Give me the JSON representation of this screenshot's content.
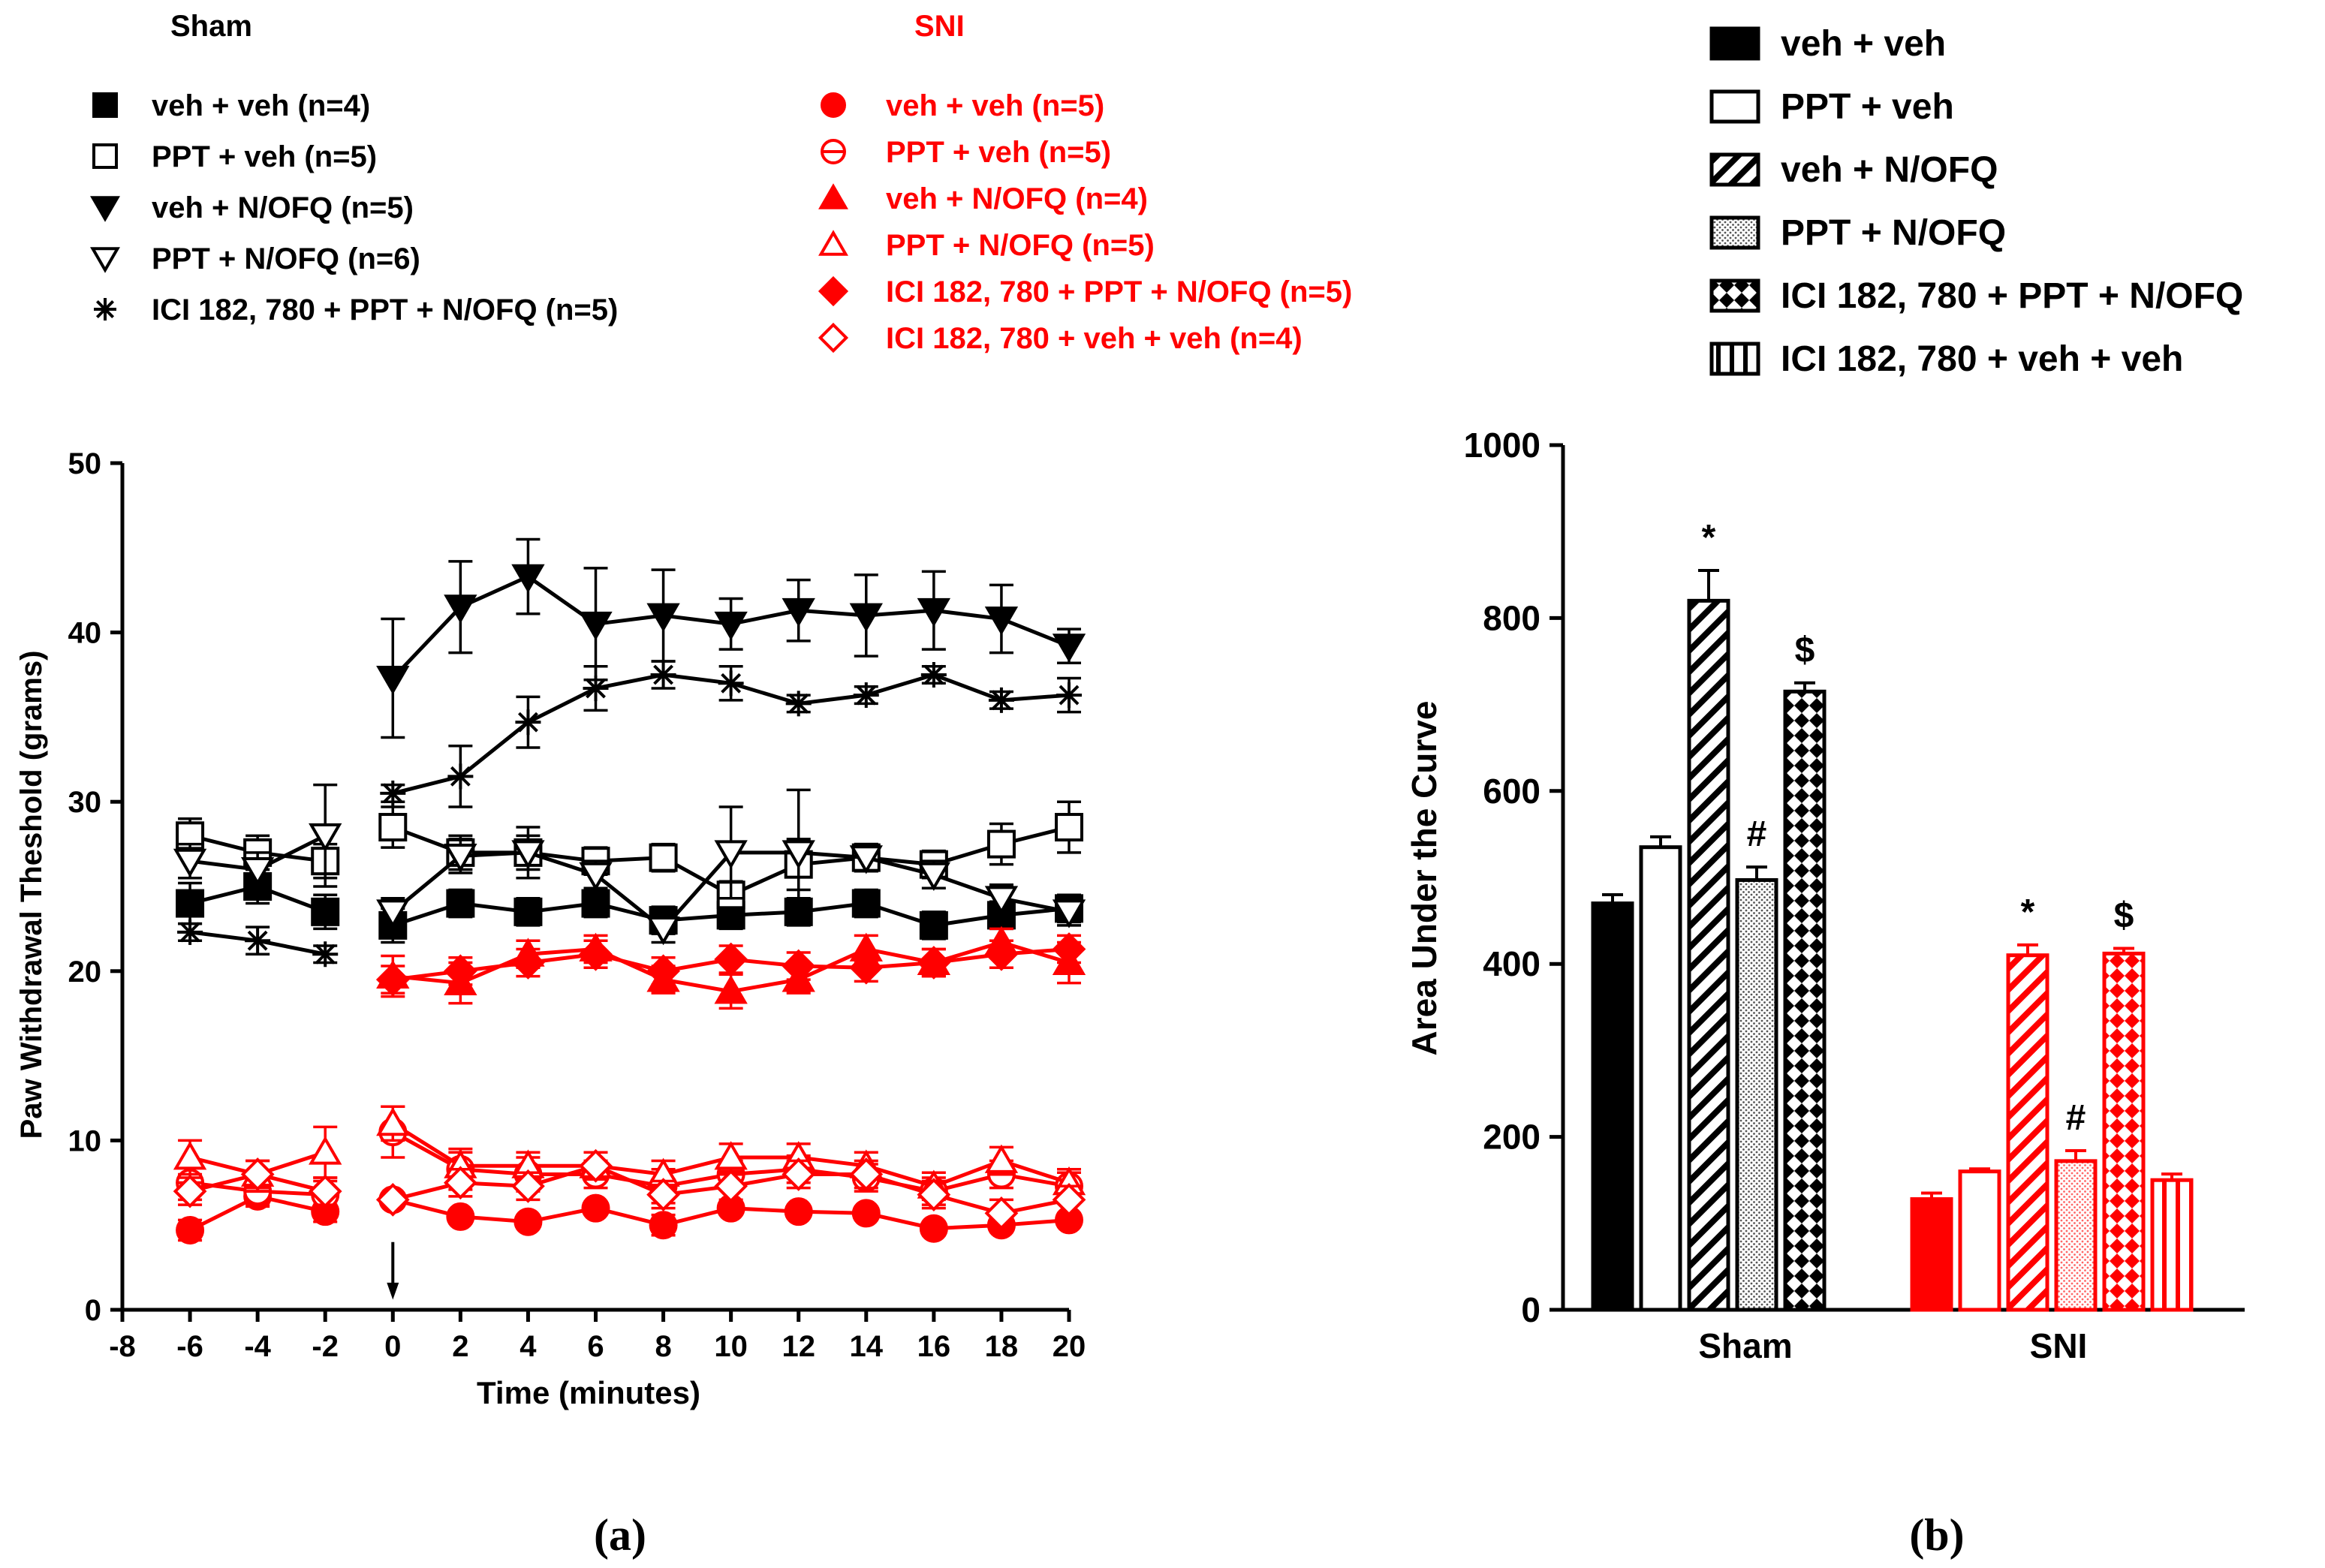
{
  "colors": {
    "sham": "#000000",
    "sni": "#ff0000"
  },
  "panel_labels": {
    "a": "(a)",
    "b": "(b)"
  },
  "chart_data": [
    {
      "type": "line",
      "panel": "(a)",
      "xlabel": "Time (minutes)",
      "ylabel": "Paw Withdrawal Theshold (grams)",
      "xlim": [
        -8,
        20
      ],
      "ylim": [
        0,
        50
      ],
      "xticks": [
        -8,
        -6,
        -4,
        -2,
        0,
        2,
        4,
        6,
        8,
        10,
        12,
        14,
        16,
        18,
        20
      ],
      "yticks": [
        0,
        10,
        20,
        30,
        40,
        50
      ],
      "injection_marker_x": 0,
      "legend_groups": [
        {
          "title": "Sham",
          "color": "#000000"
        },
        {
          "title": "SNI",
          "color": "#ff0000"
        }
      ],
      "series": [
        {
          "name": "veh + veh (n=4)",
          "group": "Sham",
          "marker": "square-filled",
          "x": [
            -6,
            -4,
            -2,
            0,
            2,
            4,
            6,
            8,
            10,
            12,
            14,
            16,
            18,
            20
          ],
          "y": [
            24,
            25,
            23.5,
            22.7,
            24,
            23.5,
            24,
            23,
            23.3,
            23.5,
            24,
            22.7,
            23.3,
            23.7
          ],
          "err": [
            1.2,
            1.0,
            1.0,
            1.0,
            0.8,
            0.8,
            0.8,
            0.8,
            0.8,
            0.8,
            0.8,
            0.8,
            0.8,
            0.8
          ]
        },
        {
          "name": "PPT + veh (n=5)",
          "group": "Sham",
          "marker": "square-open",
          "x": [
            -6,
            -4,
            -2,
            0,
            2,
            4,
            6,
            8,
            10,
            12,
            14,
            16,
            18,
            20
          ],
          "y": [
            28,
            27,
            26.5,
            28.5,
            27,
            27,
            26.5,
            26.7,
            24.5,
            26.3,
            26.7,
            26.3,
            27.5,
            28.5
          ],
          "err": [
            1.0,
            1.0,
            1.0,
            1.2,
            1.0,
            1.5,
            0.8,
            0.8,
            0.8,
            1.5,
            0.8,
            0.8,
            1.2,
            1.5
          ]
        },
        {
          "name": "veh + N/OFQ (n=5)",
          "group": "Sham",
          "marker": "triangle-down-filled",
          "x": [
            0,
            2,
            4,
            6,
            8,
            10,
            12,
            14,
            16,
            18,
            20
          ],
          "y": [
            37.3,
            41.5,
            43.3,
            40.5,
            41,
            40.5,
            41.3,
            41,
            41.3,
            40.8,
            39.2
          ],
          "err": [
            3.5,
            2.7,
            2.2,
            3.3,
            2.7,
            1.5,
            1.8,
            2.4,
            2.3,
            2.0,
            1.0
          ]
        },
        {
          "name": "PPT + N/OFQ (n=6)",
          "group": "Sham",
          "marker": "triangle-down-open",
          "x": [
            -6,
            -4,
            -2,
            0,
            2,
            4,
            6,
            8,
            10,
            12,
            14,
            16,
            18,
            20
          ],
          "y": [
            26.5,
            26,
            28,
            23.5,
            26.8,
            27,
            25.7,
            22.5,
            27,
            27,
            26.7,
            25.7,
            24.3,
            23.5
          ],
          "err": [
            1.0,
            1.0,
            3.0,
            0.8,
            1.0,
            1.0,
            0.8,
            0.8,
            2.7,
            3.7,
            0.8,
            0.8,
            0.8,
            0.8
          ]
        },
        {
          "name": "ICI 182, 780 + PPT + N/OFQ (n=5)",
          "group": "Sham",
          "marker": "asterisk",
          "x": [
            -6,
            -4,
            -2,
            0,
            2,
            4,
            6,
            8,
            10,
            12,
            14,
            16,
            18,
            20
          ],
          "y": [
            22.3,
            21.8,
            21,
            30.5,
            31.5,
            34.7,
            36.7,
            37.5,
            37,
            35.8,
            36.3,
            37.5,
            36,
            36.3
          ],
          "err": [
            0.5,
            0.8,
            0.5,
            0.5,
            1.8,
            1.5,
            1.3,
            0.8,
            1.0,
            0.5,
            0.5,
            0.5,
            0.5,
            1.0
          ]
        },
        {
          "name": "veh + veh (n=5)",
          "group": "SNI",
          "marker": "circle-filled",
          "x": [
            -6,
            -4,
            -2,
            0,
            2,
            4,
            6,
            8,
            10,
            12,
            14,
            16,
            18,
            20
          ],
          "y": [
            4.7,
            6.7,
            5.8,
            6.5,
            5.5,
            5.2,
            6,
            5,
            6,
            5.8,
            5.7,
            4.8,
            5,
            5.3
          ],
          "err": [
            0.6,
            0.6,
            0.6,
            0.3,
            0.3,
            0.3,
            0.3,
            0.6,
            0.3,
            0.3,
            0.3,
            0.3,
            0.3,
            0.3
          ]
        },
        {
          "name": "PPT + veh (n=5)",
          "group": "SNI",
          "marker": "circle-open",
          "x": [
            -6,
            -4,
            -2,
            0,
            2,
            4,
            6,
            8,
            10,
            12,
            14,
            16,
            18,
            20
          ],
          "y": [
            7.5,
            7,
            6.8,
            10.5,
            8.3,
            8,
            8,
            7.3,
            8,
            8.3,
            7.8,
            7,
            8,
            7.3
          ],
          "err": [
            1.0,
            0.8,
            0.8,
            1.5,
            1.2,
            1.0,
            0.8,
            1.0,
            0.8,
            0.8,
            0.8,
            0.8,
            0.8,
            0.8
          ]
        },
        {
          "name": "veh + N/OFQ (n=4)",
          "group": "SNI",
          "marker": "triangle-up-filled",
          "x": [
            0,
            2,
            4,
            6,
            8,
            10,
            12,
            14,
            16,
            18,
            20
          ],
          "y": [
            19.7,
            19.3,
            21,
            21.3,
            19.5,
            18.8,
            19.5,
            21.3,
            20.5,
            21.7,
            20.5
          ],
          "err": [
            1.2,
            1.2,
            0.8,
            0.8,
            0.8,
            1.0,
            0.8,
            0.8,
            0.8,
            0.8,
            1.2
          ]
        },
        {
          "name": "PPT + N/OFQ (n=5)",
          "group": "SNI",
          "marker": "triangle-up-open",
          "x": [
            -6,
            -4,
            -2,
            0,
            2,
            4,
            6,
            8,
            10,
            12,
            14,
            16,
            18,
            20
          ],
          "y": [
            9,
            8,
            9.3,
            11,
            8.5,
            8.5,
            8.5,
            8,
            9,
            9,
            8.5,
            7.3,
            8.8,
            7.5
          ],
          "err": [
            1.0,
            0.8,
            1.5,
            1.0,
            0.8,
            0.8,
            0.8,
            0.8,
            0.8,
            0.8,
            0.8,
            0.8,
            0.8,
            0.8
          ]
        },
        {
          "name": "ICI 182, 780 + PPT + N/OFQ (n=5)",
          "group": "SNI",
          "marker": "diamond-filled",
          "x": [
            0,
            2,
            4,
            6,
            8,
            10,
            12,
            14,
            16,
            18,
            20
          ],
          "y": [
            19.5,
            20,
            20.5,
            21,
            20,
            20.7,
            20.3,
            20.2,
            20.5,
            21,
            21.3
          ],
          "err": [
            0.8,
            0.8,
            0.8,
            0.8,
            0.8,
            0.8,
            0.8,
            0.8,
            0.8,
            0.8,
            0.8
          ]
        },
        {
          "name": "ICI 182, 780 + veh + veh (n=4)",
          "group": "SNI",
          "marker": "diamond-open",
          "x": [
            -6,
            -4,
            -2,
            0,
            2,
            4,
            6,
            8,
            10,
            12,
            14,
            16,
            18,
            20
          ],
          "y": [
            7,
            8,
            7,
            6.5,
            7.5,
            7.3,
            8.5,
            6.8,
            7.3,
            8,
            8,
            6.8,
            5.7,
            6.5
          ],
          "err": [
            0.8,
            0.8,
            0.8,
            0.3,
            0.8,
            0.8,
            0.8,
            0.8,
            0.8,
            0.8,
            0.8,
            0.8,
            0.8,
            0.8
          ]
        }
      ]
    },
    {
      "type": "bar",
      "panel": "(b)",
      "ylabel": "Area Under the Curve",
      "ylim": [
        0,
        1000
      ],
      "yticks": [
        0,
        200,
        400,
        600,
        800,
        1000
      ],
      "categories": [
        "Sham",
        "SNI"
      ],
      "legend": [
        {
          "name": "veh + veh",
          "pattern": "solid"
        },
        {
          "name": "PPT + veh",
          "pattern": "open"
        },
        {
          "name": "veh + N/OFQ",
          "pattern": "diagonal"
        },
        {
          "name": "PPT + N/OFQ",
          "pattern": "dots"
        },
        {
          "name": "ICI 182, 780 + PPT + N/OFQ",
          "pattern": "crosshatch"
        },
        {
          "name": "ICI 182, 780 + veh + veh",
          "pattern": "vertical"
        }
      ],
      "series": [
        {
          "name": "veh + veh",
          "values": [
            470,
            128
          ],
          "errors": [
            10,
            7
          ]
        },
        {
          "name": "PPT + veh",
          "values": [
            535,
            160
          ],
          "errors": [
            12,
            3
          ]
        },
        {
          "name": "veh + N/OFQ",
          "values": [
            820,
            410
          ],
          "errors": [
            35,
            12
          ]
        },
        {
          "name": "PPT + N/OFQ",
          "values": [
            497,
            172
          ],
          "errors": [
            15,
            12
          ]
        },
        {
          "name": "ICI 182, 780 + PPT + N/OFQ",
          "values": [
            715,
            412
          ],
          "errors": [
            10,
            6
          ]
        },
        {
          "name": "ICI 182, 780 + veh + veh",
          "values": [
            null,
            150
          ],
          "errors": [
            null,
            7
          ]
        }
      ],
      "annotations": [
        {
          "category": "Sham",
          "series": 2,
          "text": "*"
        },
        {
          "category": "Sham",
          "series": 3,
          "text": "#"
        },
        {
          "category": "Sham",
          "series": 4,
          "text": "$"
        },
        {
          "category": "SNI",
          "series": 2,
          "text": "*"
        },
        {
          "category": "SNI",
          "series": 3,
          "text": "#"
        },
        {
          "category": "SNI",
          "series": 4,
          "text": "$"
        }
      ]
    }
  ]
}
